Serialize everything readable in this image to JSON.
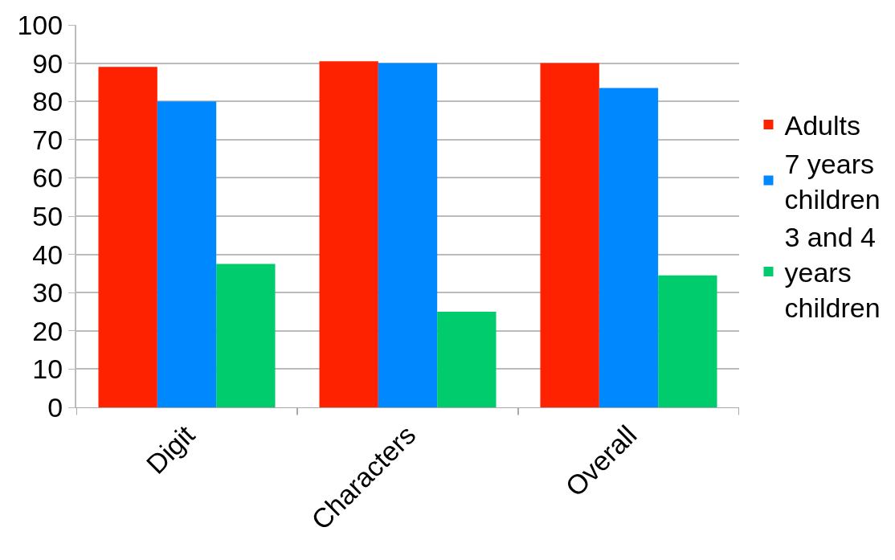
{
  "chart_data": {
    "type": "bar",
    "categories": [
      "Digit",
      "Characters",
      "Overall"
    ],
    "series": [
      {
        "name": "Adults",
        "color": "#ff2200",
        "values": [
          89,
          90.5,
          90
        ]
      },
      {
        "name": "7 years children",
        "color": "#0088ff",
        "values": [
          80,
          90,
          83.5
        ]
      },
      {
        "name": "3 and 4 years children",
        "color": "#00cc6e",
        "values": [
          37.5,
          25,
          34.5
        ]
      }
    ],
    "ylim": [
      0,
      100
    ],
    "yticks": [
      0,
      10,
      20,
      30,
      40,
      50,
      60,
      70,
      80,
      90,
      100
    ],
    "grid": "y",
    "legend": "right"
  }
}
